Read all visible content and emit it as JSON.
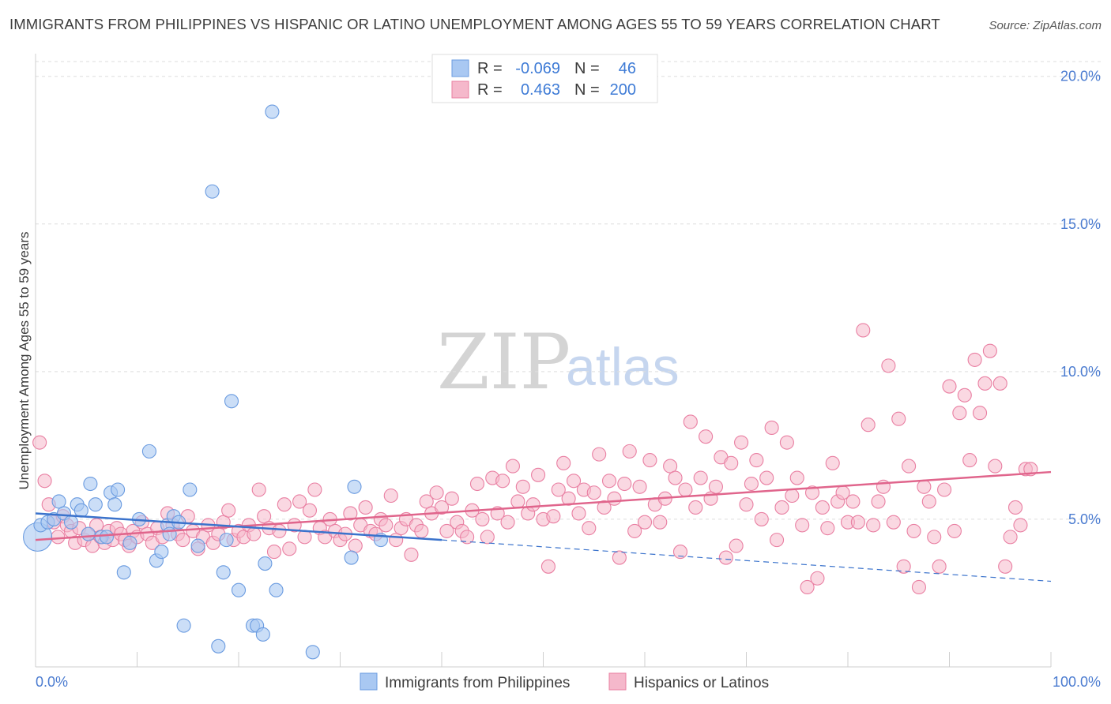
{
  "title": "IMMIGRANTS FROM PHILIPPINES VS HISPANIC OR LATINO UNEMPLOYMENT AMONG AGES 55 TO 59 YEARS CORRELATION CHART",
  "source": "Source: ZipAtlas.com",
  "watermark": {
    "zip": "ZIP",
    "atlas": "atlas"
  },
  "colors": {
    "blue_fill": "#a9c8f2",
    "blue_stroke": "#6a9be0",
    "blue_line": "#3b73cc",
    "pink_fill": "#f5b8cb",
    "pink_stroke": "#e97fa2",
    "pink_line": "#e0658c",
    "grid": "#dedede",
    "axis_text": "#4a7bd0"
  },
  "legend": {
    "rows": [
      {
        "r_label": "R =",
        "r_value": "-0.069",
        "n_label": "N =",
        "n_value": "46"
      },
      {
        "r_label": "R =",
        "r_value": "0.463",
        "n_label": "N =",
        "n_value": "200"
      }
    ]
  },
  "chart_data": {
    "type": "scatter",
    "title": "IMMIGRANTS FROM PHILIPPINES VS HISPANIC OR LATINO UNEMPLOYMENT AMONG AGES 55 TO 59 YEARS CORRELATION CHART",
    "xlabel": "",
    "ylabel": "Unemployment Among Ages 55 to 59 years",
    "xlim": [
      0,
      100
    ],
    "ylim": [
      0,
      20.5
    ],
    "x_tick_labels": [
      "0.0%",
      "100.0%"
    ],
    "y_ticks": [
      5,
      10,
      15,
      20
    ],
    "y_tick_labels": [
      "5.0%",
      "10.0%",
      "15.0%",
      "20.0%"
    ],
    "grid": true,
    "legend_position": "top-center",
    "series": [
      {
        "name": "Immigrants from Philippines",
        "color": "#a9c8f2",
        "trend": {
          "x": [
            0,
            40
          ],
          "y": [
            5.2,
            4.3
          ],
          "dashed_to": [
            100,
            2.9
          ]
        },
        "points": [
          [
            0.2,
            4.4
          ],
          [
            0.5,
            4.8
          ],
          [
            1.2,
            4.9
          ],
          [
            1.8,
            5.0
          ],
          [
            2.3,
            5.6
          ],
          [
            2.8,
            5.2
          ],
          [
            3.5,
            4.9
          ],
          [
            4.1,
            5.5
          ],
          [
            4.5,
            5.3
          ],
          [
            5.2,
            4.5
          ],
          [
            5.4,
            6.2
          ],
          [
            5.9,
            5.5
          ],
          [
            6.5,
            4.4
          ],
          [
            7.0,
            4.4
          ],
          [
            7.4,
            5.9
          ],
          [
            7.8,
            5.5
          ],
          [
            8.1,
            6.0
          ],
          [
            8.7,
            3.2
          ],
          [
            9.3,
            4.2
          ],
          [
            10.2,
            5.0
          ],
          [
            11.2,
            7.3
          ],
          [
            11.9,
            3.6
          ],
          [
            12.4,
            3.9
          ],
          [
            13.0,
            4.8
          ],
          [
            13.2,
            4.5
          ],
          [
            13.6,
            5.1
          ],
          [
            14.1,
            4.9
          ],
          [
            14.6,
            1.4
          ],
          [
            15.2,
            6.0
          ],
          [
            16.0,
            4.1
          ],
          [
            17.4,
            16.1
          ],
          [
            18.0,
            0.7
          ],
          [
            18.5,
            3.2
          ],
          [
            18.8,
            4.3
          ],
          [
            19.3,
            9.0
          ],
          [
            20.0,
            2.6
          ],
          [
            21.4,
            1.4
          ],
          [
            21.8,
            1.4
          ],
          [
            22.4,
            1.1
          ],
          [
            22.6,
            3.5
          ],
          [
            23.3,
            18.8
          ],
          [
            23.7,
            2.6
          ],
          [
            27.3,
            0.5
          ],
          [
            31.1,
            3.7
          ],
          [
            31.4,
            6.1
          ],
          [
            34.0,
            4.3
          ]
        ]
      },
      {
        "name": "Hispanics or Latinos",
        "color": "#f5b8cb",
        "trend": {
          "x": [
            0,
            100
          ],
          "y": [
            4.3,
            6.6
          ]
        },
        "points": [
          [
            0.4,
            7.6
          ],
          [
            0.9,
            6.3
          ],
          [
            1.3,
            5.5
          ],
          [
            1.8,
            4.9
          ],
          [
            2.2,
            4.4
          ],
          [
            2.7,
            5.1
          ],
          [
            3.1,
            4.8
          ],
          [
            3.5,
            4.6
          ],
          [
            3.9,
            4.2
          ],
          [
            4.3,
            4.7
          ],
          [
            4.8,
            4.3
          ],
          [
            5.2,
            4.5
          ],
          [
            5.6,
            4.1
          ],
          [
            6.0,
            4.8
          ],
          [
            6.4,
            4.4
          ],
          [
            6.8,
            4.2
          ],
          [
            7.2,
            4.6
          ],
          [
            7.6,
            4.3
          ],
          [
            8.0,
            4.7
          ],
          [
            8.4,
            4.5
          ],
          [
            8.8,
            4.3
          ],
          [
            9.2,
            4.1
          ],
          [
            9.6,
            4.6
          ],
          [
            10.0,
            4.4
          ],
          [
            10.5,
            4.9
          ],
          [
            11.0,
            4.5
          ],
          [
            11.5,
            4.2
          ],
          [
            12.0,
            4.7
          ],
          [
            12.5,
            4.4
          ],
          [
            13.0,
            5.2
          ],
          [
            13.5,
            4.8
          ],
          [
            14.0,
            4.5
          ],
          [
            14.5,
            4.3
          ],
          [
            15.0,
            5.1
          ],
          [
            15.5,
            4.6
          ],
          [
            16.0,
            4.0
          ],
          [
            16.5,
            4.4
          ],
          [
            17.0,
            4.8
          ],
          [
            17.5,
            4.2
          ],
          [
            18.0,
            4.5
          ],
          [
            18.5,
            4.9
          ],
          [
            19.0,
            5.3
          ],
          [
            19.5,
            4.3
          ],
          [
            20.0,
            4.6
          ],
          [
            20.5,
            4.4
          ],
          [
            21.0,
            4.8
          ],
          [
            21.5,
            4.5
          ],
          [
            22.0,
            6.0
          ],
          [
            22.5,
            5.1
          ],
          [
            23.0,
            4.7
          ],
          [
            23.5,
            3.9
          ],
          [
            24.0,
            4.6
          ],
          [
            24.5,
            5.5
          ],
          [
            25.0,
            4.0
          ],
          [
            25.5,
            4.8
          ],
          [
            26.0,
            5.6
          ],
          [
            26.5,
            4.4
          ],
          [
            27.0,
            5.3
          ],
          [
            27.5,
            6.0
          ],
          [
            28.0,
            4.7
          ],
          [
            28.5,
            4.4
          ],
          [
            29.0,
            5.0
          ],
          [
            29.5,
            4.6
          ],
          [
            30.0,
            4.3
          ],
          [
            30.5,
            4.5
          ],
          [
            31.0,
            5.2
          ],
          [
            31.5,
            4.1
          ],
          [
            32.0,
            4.8
          ],
          [
            32.5,
            5.4
          ],
          [
            33.0,
            4.6
          ],
          [
            33.5,
            4.5
          ],
          [
            34.0,
            5.0
          ],
          [
            34.5,
            4.8
          ],
          [
            35.0,
            5.8
          ],
          [
            35.5,
            4.3
          ],
          [
            36.0,
            4.7
          ],
          [
            36.5,
            5.0
          ],
          [
            37.0,
            3.8
          ],
          [
            37.5,
            4.8
          ],
          [
            38.0,
            4.6
          ],
          [
            38.5,
            5.6
          ],
          [
            39.0,
            5.2
          ],
          [
            39.5,
            5.9
          ],
          [
            40.0,
            5.4
          ],
          [
            40.5,
            4.6
          ],
          [
            41.0,
            5.7
          ],
          [
            41.5,
            4.9
          ],
          [
            42.0,
            4.6
          ],
          [
            42.5,
            4.4
          ],
          [
            43.0,
            5.3
          ],
          [
            43.5,
            6.2
          ],
          [
            44.0,
            5.0
          ],
          [
            44.5,
            4.4
          ],
          [
            45.0,
            6.4
          ],
          [
            45.5,
            5.2
          ],
          [
            46.0,
            6.3
          ],
          [
            46.5,
            4.9
          ],
          [
            47.0,
            6.8
          ],
          [
            47.5,
            5.6
          ],
          [
            48.0,
            6.1
          ],
          [
            48.5,
            5.2
          ],
          [
            49.0,
            5.5
          ],
          [
            49.5,
            6.5
          ],
          [
            50.0,
            5.0
          ],
          [
            50.5,
            3.4
          ],
          [
            51.0,
            5.1
          ],
          [
            51.5,
            6.0
          ],
          [
            52.0,
            6.9
          ],
          [
            52.5,
            5.7
          ],
          [
            53.0,
            6.3
          ],
          [
            53.5,
            5.2
          ],
          [
            54.0,
            6.0
          ],
          [
            54.5,
            4.7
          ],
          [
            55.0,
            5.9
          ],
          [
            55.5,
            7.2
          ],
          [
            56.0,
            5.4
          ],
          [
            56.5,
            6.3
          ],
          [
            57.0,
            5.7
          ],
          [
            57.5,
            3.7
          ],
          [
            58.0,
            6.2
          ],
          [
            58.5,
            7.3
          ],
          [
            59.0,
            4.6
          ],
          [
            59.5,
            6.1
          ],
          [
            60.0,
            4.9
          ],
          [
            60.5,
            7.0
          ],
          [
            61.0,
            5.5
          ],
          [
            61.5,
            4.9
          ],
          [
            62.0,
            5.7
          ],
          [
            62.5,
            6.8
          ],
          [
            63.0,
            6.4
          ],
          [
            63.5,
            3.9
          ],
          [
            64.0,
            6.0
          ],
          [
            64.5,
            8.3
          ],
          [
            65.0,
            5.4
          ],
          [
            65.5,
            6.4
          ],
          [
            66.0,
            7.8
          ],
          [
            66.5,
            5.7
          ],
          [
            67.0,
            6.1
          ],
          [
            67.5,
            7.1
          ],
          [
            68.0,
            3.7
          ],
          [
            68.5,
            6.9
          ],
          [
            69.0,
            4.1
          ],
          [
            69.5,
            7.6
          ],
          [
            70.0,
            5.5
          ],
          [
            70.5,
            6.2
          ],
          [
            71.0,
            7.0
          ],
          [
            71.5,
            5.0
          ],
          [
            72.0,
            6.4
          ],
          [
            72.5,
            8.1
          ],
          [
            73.0,
            4.3
          ],
          [
            73.5,
            5.4
          ],
          [
            74.0,
            7.6
          ],
          [
            74.5,
            5.8
          ],
          [
            75.0,
            6.4
          ],
          [
            75.5,
            4.8
          ],
          [
            76.0,
            2.7
          ],
          [
            76.5,
            5.9
          ],
          [
            77.0,
            3.0
          ],
          [
            77.5,
            5.4
          ],
          [
            78.0,
            4.7
          ],
          [
            78.5,
            6.9
          ],
          [
            79.0,
            5.6
          ],
          [
            79.5,
            5.9
          ],
          [
            80.0,
            4.9
          ],
          [
            80.5,
            5.6
          ],
          [
            81.0,
            4.9
          ],
          [
            81.5,
            11.4
          ],
          [
            82.0,
            8.2
          ],
          [
            82.5,
            4.8
          ],
          [
            83.0,
            5.6
          ],
          [
            83.5,
            6.1
          ],
          [
            84.0,
            10.2
          ],
          [
            84.5,
            4.9
          ],
          [
            85.0,
            8.4
          ],
          [
            85.5,
            3.4
          ],
          [
            86.0,
            6.8
          ],
          [
            86.5,
            4.6
          ],
          [
            87.0,
            2.7
          ],
          [
            87.5,
            6.1
          ],
          [
            88.0,
            5.6
          ],
          [
            88.5,
            4.4
          ],
          [
            89.0,
            3.4
          ],
          [
            89.5,
            6.0
          ],
          [
            90.0,
            9.5
          ],
          [
            90.5,
            4.6
          ],
          [
            91.0,
            8.6
          ],
          [
            91.5,
            9.2
          ],
          [
            92.0,
            7.0
          ],
          [
            92.5,
            10.4
          ],
          [
            93.0,
            8.6
          ],
          [
            93.5,
            9.6
          ],
          [
            94.0,
            10.7
          ],
          [
            94.5,
            6.8
          ],
          [
            95.0,
            9.6
          ],
          [
            95.5,
            3.4
          ],
          [
            96.0,
            4.4
          ],
          [
            96.5,
            5.4
          ],
          [
            97.0,
            4.8
          ],
          [
            97.5,
            6.7
          ],
          [
            98.0,
            6.7
          ]
        ]
      }
    ]
  },
  "bottom_legend": [
    {
      "label": "Immigrants from Philippines"
    },
    {
      "label": "Hispanics or Latinos"
    }
  ]
}
